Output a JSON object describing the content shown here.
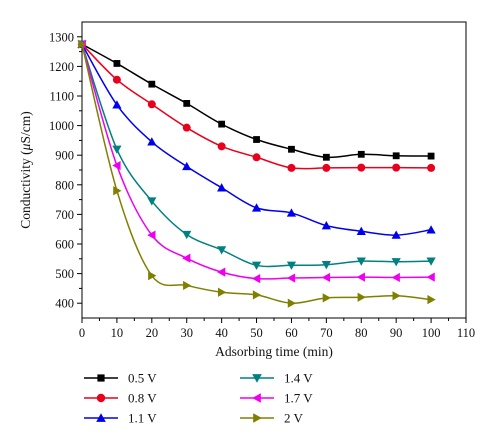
{
  "chart_data": {
    "type": "line",
    "xlabel": "Adsorbing time (min)",
    "ylabel_prefix": "Conductivity (",
    "ylabel_mu": "μ",
    "ylabel_suffix": "S/cm)",
    "xlim": [
      0,
      110
    ],
    "ylim": [
      350,
      1350
    ],
    "xticks": [
      0,
      10,
      20,
      30,
      40,
      50,
      60,
      70,
      80,
      90,
      100,
      110
    ],
    "yticks": [
      400,
      500,
      600,
      700,
      800,
      900,
      1000,
      1100,
      1200,
      1300
    ],
    "x": [
      0,
      10,
      20,
      30,
      40,
      50,
      60,
      70,
      80,
      90,
      100
    ],
    "legend_placement": "bottom",
    "series": [
      {
        "name": "0.5 V",
        "marker": "square",
        "color": "#000000",
        "values": [
          1275,
          1210,
          1140,
          1075,
          1005,
          953,
          920,
          893,
          903,
          898,
          897
        ]
      },
      {
        "name": "0.8 V",
        "marker": "circle",
        "color": "#e8001c",
        "values": [
          1275,
          1155,
          1072,
          993,
          930,
          893,
          857,
          857,
          858,
          858,
          857
        ]
      },
      {
        "name": "1.1 V",
        "marker": "triangle-up",
        "color": "#0000ee",
        "values": [
          1275,
          1070,
          945,
          862,
          790,
          722,
          705,
          662,
          643,
          630,
          648
        ]
      },
      {
        "name": "1.4 V",
        "marker": "triangle-down",
        "color": "#008080",
        "values": [
          1275,
          920,
          745,
          632,
          580,
          528,
          528,
          530,
          542,
          540,
          542
        ]
      },
      {
        "name": "1.7 V",
        "marker": "triangle-left",
        "color": "#ee00ee",
        "values": [
          1275,
          865,
          630,
          552,
          505,
          483,
          485,
          487,
          488,
          487,
          488
        ]
      },
      {
        "name": "2 V",
        "marker": "triangle-right",
        "color": "#808000",
        "values": [
          1275,
          780,
          493,
          460,
          437,
          428,
          400,
          418,
          420,
          425,
          412
        ]
      }
    ]
  }
}
